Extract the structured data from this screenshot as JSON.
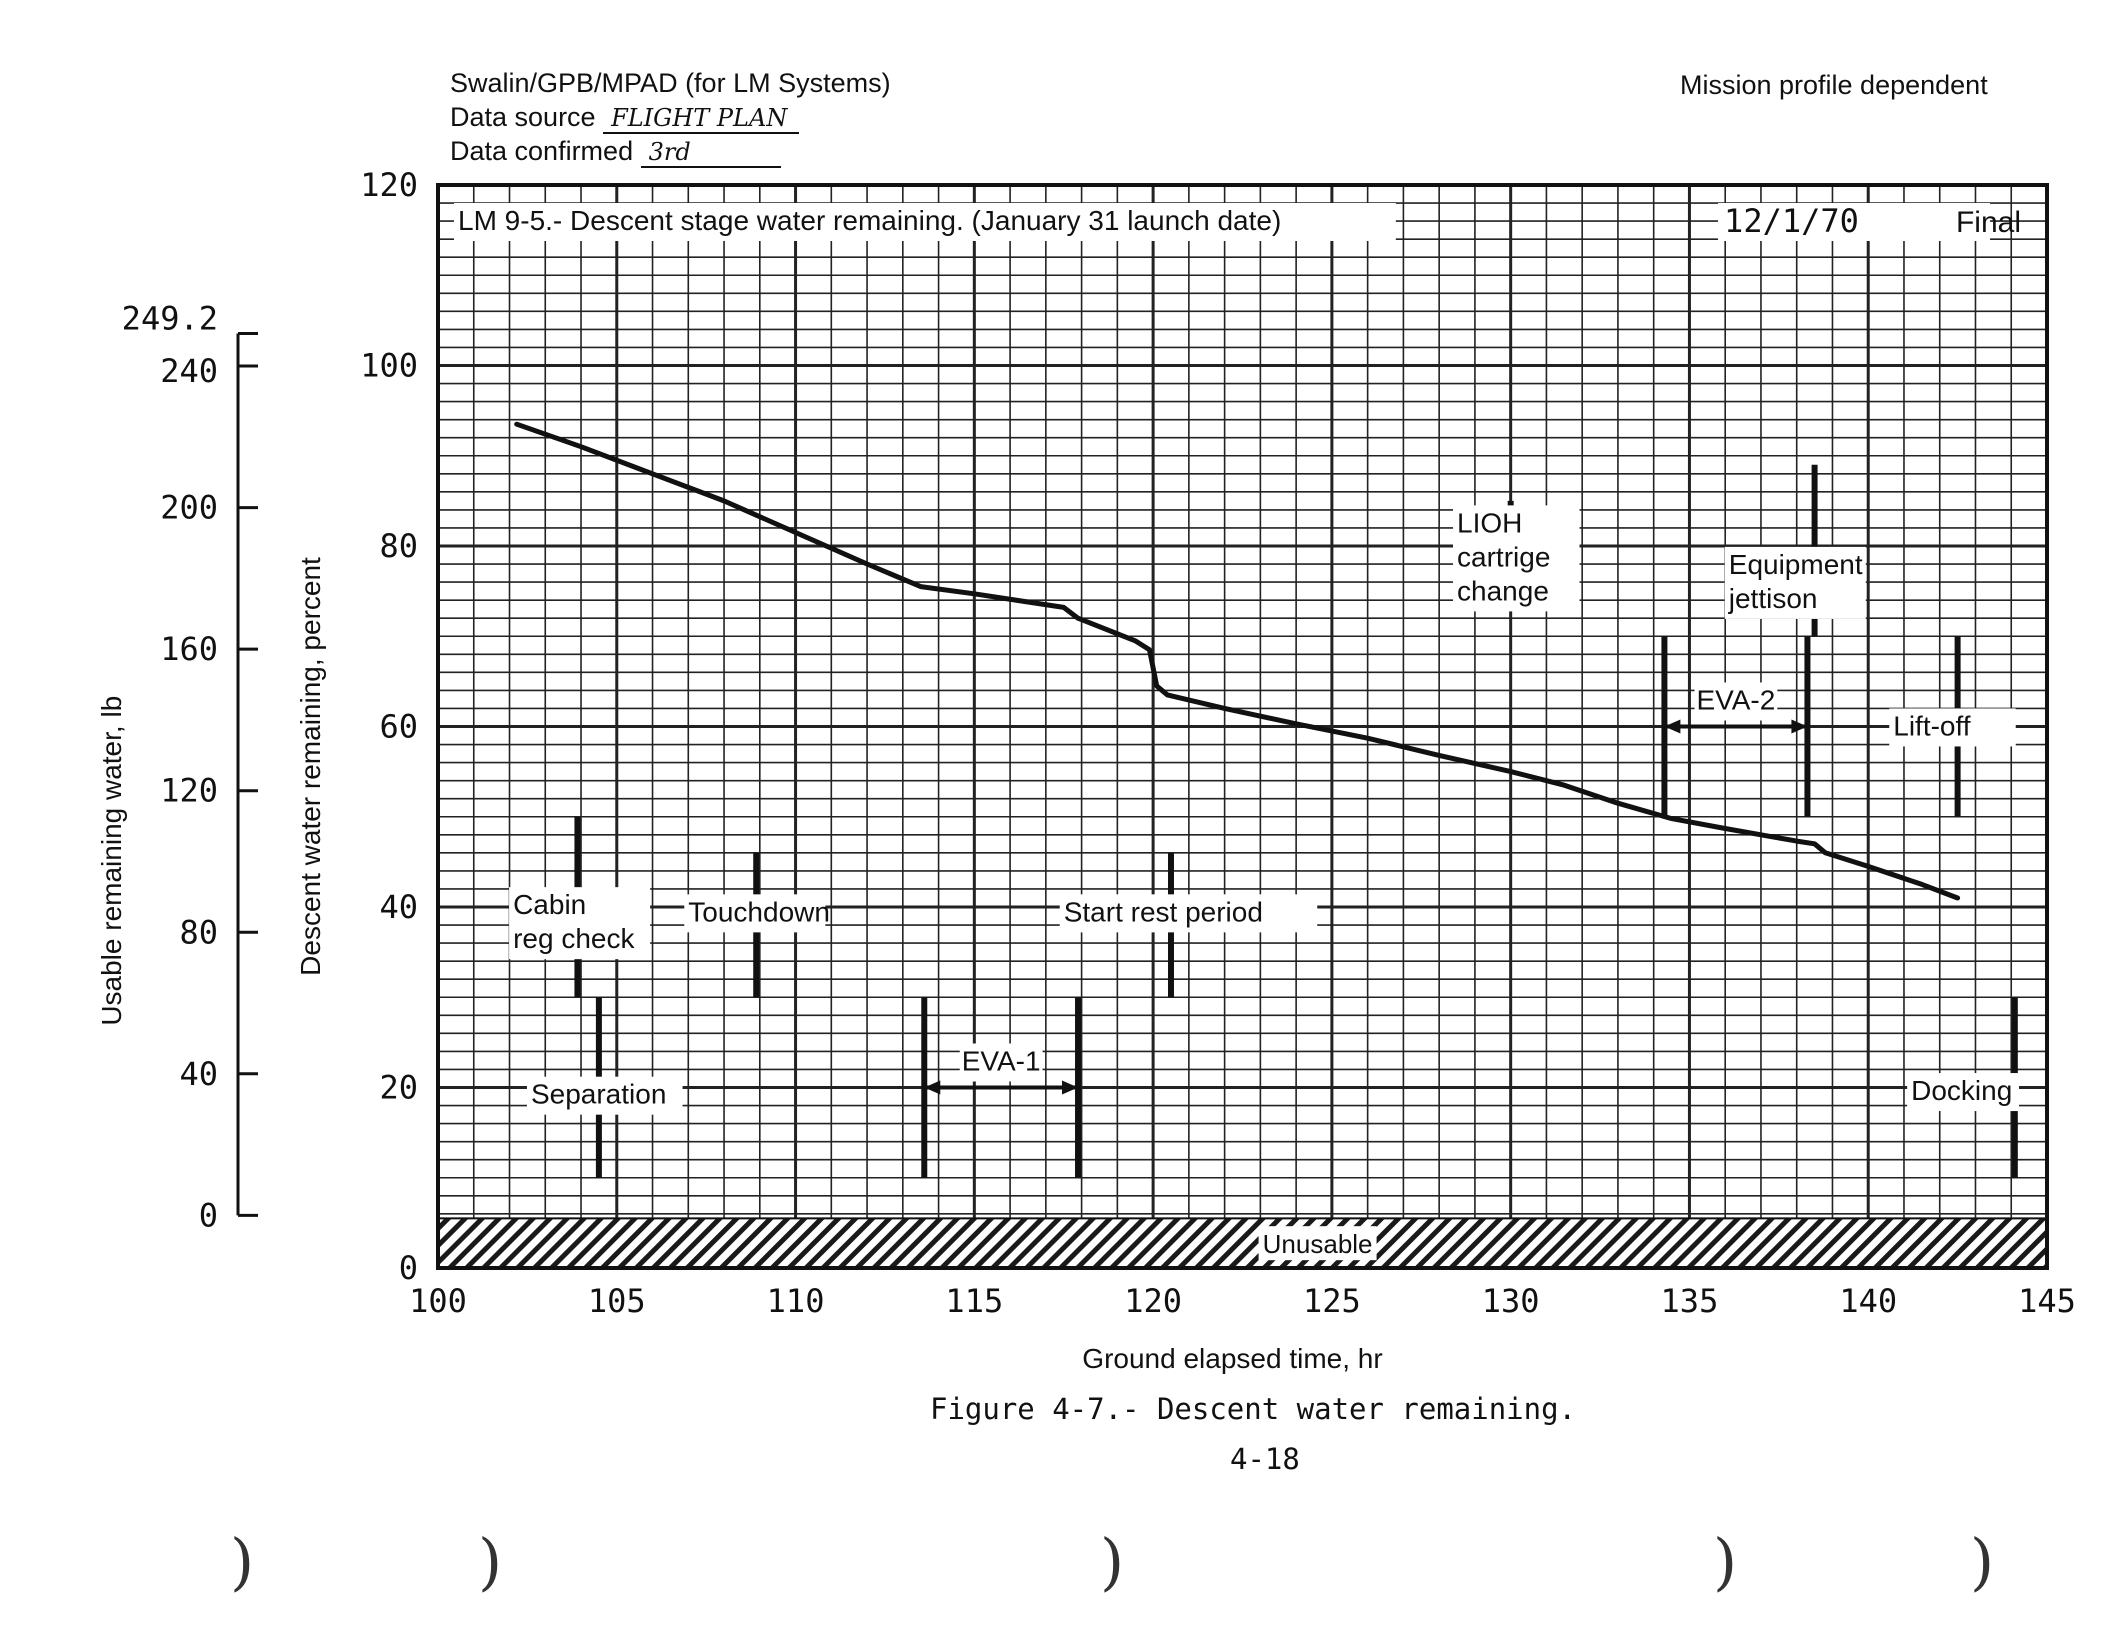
{
  "header": {
    "author": "Swalin/GPB/MPAD  (for LM Systems)",
    "source_label": "Data source",
    "source_value": "FLIGHT PLAN",
    "confirmed_label": "Data confirmed",
    "confirmed_value": "3rd",
    "profile": "Mission profile dependent"
  },
  "chart_data": {
    "type": "line",
    "title": "LM 9-5.- Descent stage water remaining. (January 31 launch date)",
    "date_stamp": "12/1/70",
    "status": "Final",
    "xlabel": "Ground elapsed time, hr",
    "ylabel": "Descent water remaining, percent",
    "y2label": "Usable remaining water, lb",
    "xlim": [
      100,
      145
    ],
    "ylim": [
      0,
      120
    ],
    "x_ticks": [
      "100",
      "105",
      "110",
      "115",
      "120",
      "125",
      "130",
      "135",
      "140",
      "145"
    ],
    "y_ticks": [
      "0",
      "20",
      "40",
      "60",
      "80",
      "100",
      "120"
    ],
    "y2_ticks": [
      {
        "label": "0",
        "value": 0
      },
      {
        "label": "40",
        "value": 40
      },
      {
        "label": "80",
        "value": 80
      },
      {
        "label": "120",
        "value": 120
      },
      {
        "label": "160",
        "value": 160
      },
      {
        "label": "200",
        "value": 200
      },
      {
        "label": "240",
        "value": 240
      },
      {
        "label": "249.2",
        "value": 249.2
      }
    ],
    "y2_range_lb": [
      0,
      249.2
    ],
    "y2_zero_percent": 5.5,
    "y2_full_percent": 100,
    "unusable_label": "Unusable",
    "unusable_range": [
      0,
      5.5
    ],
    "series": [
      {
        "name": "Descent water remaining",
        "points": [
          [
            102.2,
            93.5
          ],
          [
            104,
            91
          ],
          [
            106,
            88
          ],
          [
            108,
            85
          ],
          [
            110,
            81.5
          ],
          [
            112,
            78
          ],
          [
            113.5,
            75.5
          ],
          [
            115,
            74.7
          ],
          [
            116.5,
            73.8
          ],
          [
            117.5,
            73.2
          ],
          [
            117.9,
            72
          ],
          [
            119.5,
            69.5
          ],
          [
            119.9,
            68.5
          ],
          [
            120.1,
            64.5
          ],
          [
            120.4,
            63.5
          ],
          [
            122,
            62
          ],
          [
            124,
            60.3
          ],
          [
            126,
            58.7
          ],
          [
            128,
            56.8
          ],
          [
            130,
            55
          ],
          [
            131.5,
            53.5
          ],
          [
            133,
            51.5
          ],
          [
            134.5,
            49.8
          ],
          [
            136,
            48.7
          ],
          [
            138,
            47.3
          ],
          [
            138.5,
            47
          ],
          [
            138.8,
            46
          ],
          [
            140,
            44.5
          ],
          [
            141.5,
            42.5
          ],
          [
            142.5,
            41
          ]
        ]
      }
    ],
    "events": [
      {
        "label": "Cabin",
        "label2": "reg check",
        "x": 103.9,
        "y1": 30,
        "y2": 50
      },
      {
        "label": "Separation",
        "x": 104.5,
        "y1": 10,
        "y2": 30
      },
      {
        "label": "Touchdown",
        "x": 108.9,
        "y1": 30,
        "y2": 46
      },
      {
        "label": "Start rest period",
        "x": 120.5,
        "y1": 30,
        "y2": 46
      },
      {
        "label": "LIOH",
        "label2": "cartrige",
        "label3": "change",
        "x": 130,
        "y1": 73,
        "y2": 85
      },
      {
        "label": "Equipment",
        "label2": "jettison",
        "x": 138.5,
        "y1": 70,
        "y2": 89
      },
      {
        "label": "Lift-off",
        "x": 142.5,
        "y1": 50,
        "y2": 70
      },
      {
        "label": "Docking",
        "x": 144.1,
        "y1": 10,
        "y2": 30
      }
    ],
    "spans": [
      {
        "label": "EVA-1",
        "x1": 113.6,
        "x2": 117.9,
        "y": 20,
        "y1": 10,
        "y2": 30
      },
      {
        "label": "EVA-2",
        "x1": 134.3,
        "x2": 138.3,
        "y": 60,
        "y1": 50,
        "y2": 70
      }
    ]
  },
  "footer": {
    "caption": "Figure 4-7.- Descent water remaining.",
    "page": "4-18"
  }
}
